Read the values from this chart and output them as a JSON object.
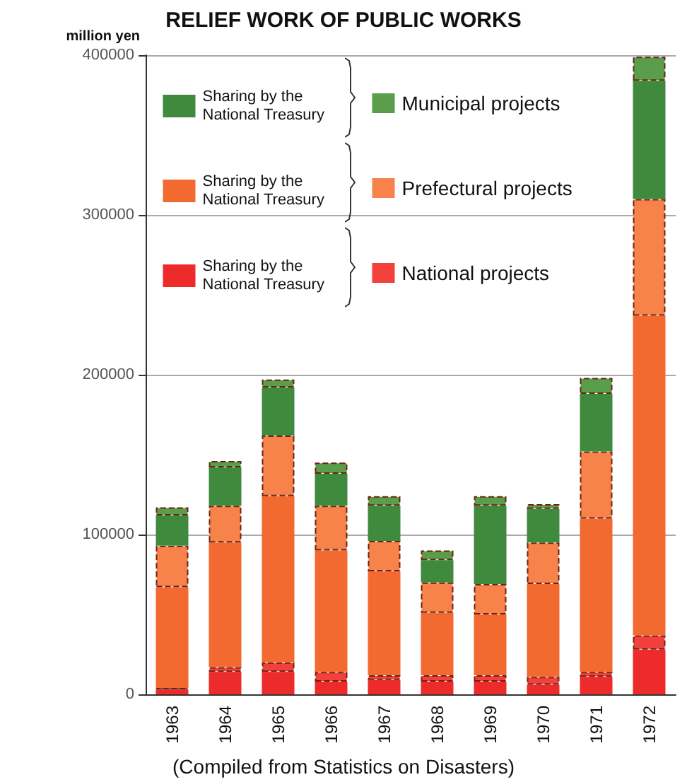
{
  "chart_data": {
    "type": "bar",
    "title": "RELIEF WORK OF PUBLIC WORKS",
    "ylabel": "million yen",
    "annotations": [
      "(Compiled from Statistics on Disasters)"
    ],
    "categories": [
      "1963",
      "1964",
      "1965",
      "1966",
      "1967",
      "1968",
      "1969",
      "1970",
      "1971",
      "1972"
    ],
    "stacked": true,
    "ylim": [
      0,
      400000
    ],
    "yticks": [
      0,
      100000,
      200000,
      300000,
      400000
    ],
    "grid": "y",
    "legend": "top left",
    "series": [
      {
        "name": "Sharing by the National Treasury",
        "color": "#ee2b2b",
        "values": [
          3000,
          14000,
          14000,
          8000,
          9000,
          8000,
          8000,
          6000,
          11000,
          28000
        ]
      },
      {
        "name": "National projects",
        "color": "#f4403a",
        "values": [
          1000,
          3000,
          6000,
          6000,
          3000,
          4000,
          4000,
          5000,
          3000,
          9000
        ]
      },
      {
        "name": "Sharing by the National Treasury",
        "color": "#f26a30",
        "values": [
          63000,
          78000,
          104000,
          76000,
          65000,
          39000,
          38000,
          58000,
          96000,
          200000
        ]
      },
      {
        "name": "Prefectural projects",
        "color": "#f7834a",
        "values": [
          26000,
          23000,
          38000,
          28000,
          19000,
          19000,
          19000,
          26000,
          42000,
          73000
        ]
      },
      {
        "name": "Sharing by the National Treasury",
        "color": "#3f8a3c",
        "values": [
          19000,
          24000,
          30000,
          20000,
          22000,
          14000,
          49000,
          21000,
          36000,
          74000
        ]
      },
      {
        "name": "Municipal projects",
        "color": "#5a9e4c",
        "values": [
          5000,
          4000,
          5000,
          7000,
          6000,
          6000,
          6000,
          3000,
          10000,
          15000
        ]
      }
    ]
  }
}
